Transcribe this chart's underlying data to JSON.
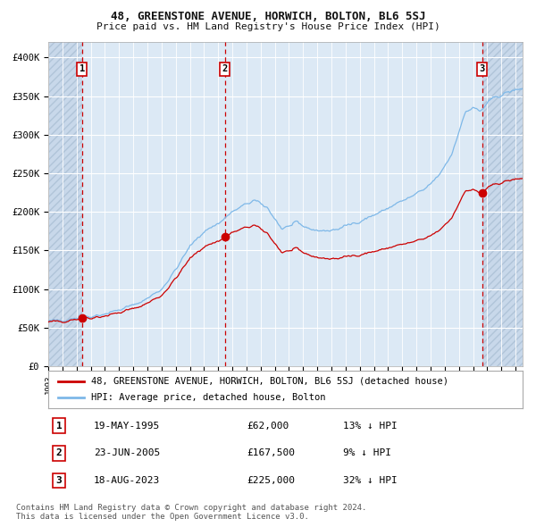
{
  "title1": "48, GREENSTONE AVENUE, HORWICH, BOLTON, BL6 5SJ",
  "title2": "Price paid vs. HM Land Registry's House Price Index (HPI)",
  "legend_line1": "48, GREENSTONE AVENUE, HORWICH, BOLTON, BL6 5SJ (detached house)",
  "legend_line2": "HPI: Average price, detached house, Bolton",
  "transactions": [
    {
      "num": 1,
      "date": "19-MAY-1995",
      "price": 62000,
      "price_str": "£62,000",
      "pct": "13%",
      "dir": "↓",
      "year": 1995.38
    },
    {
      "num": 2,
      "date": "23-JUN-2005",
      "price": 167500,
      "price_str": "£167,500",
      "pct": "9%",
      "dir": "↓",
      "year": 2005.47
    },
    {
      "num": 3,
      "date": "18-AUG-2023",
      "price": 225000,
      "price_str": "£225,000",
      "pct": "32%",
      "dir": "↓",
      "year": 2023.63
    }
  ],
  "xlim": [
    1993.0,
    2026.5
  ],
  "ylim": [
    0,
    420000
  ],
  "yticks": [
    0,
    50000,
    100000,
    150000,
    200000,
    250000,
    300000,
    350000,
    400000
  ],
  "ytick_labels": [
    "£0",
    "£50K",
    "£100K",
    "£150K",
    "£200K",
    "£250K",
    "£300K",
    "£350K",
    "£400K"
  ],
  "background_color": "#ffffff",
  "plot_bg_color": "#dce9f5",
  "hatch_color": "#c8d8ea",
  "grid_color": "#ffffff",
  "hpi_line_color": "#7eb8e8",
  "price_line_color": "#cc0000",
  "dot_color": "#cc0000",
  "vline_color": "#cc0000",
  "box_color": "#cc0000",
  "footer_text": "Contains HM Land Registry data © Crown copyright and database right 2024.\nThis data is licensed under the Open Government Licence v3.0."
}
